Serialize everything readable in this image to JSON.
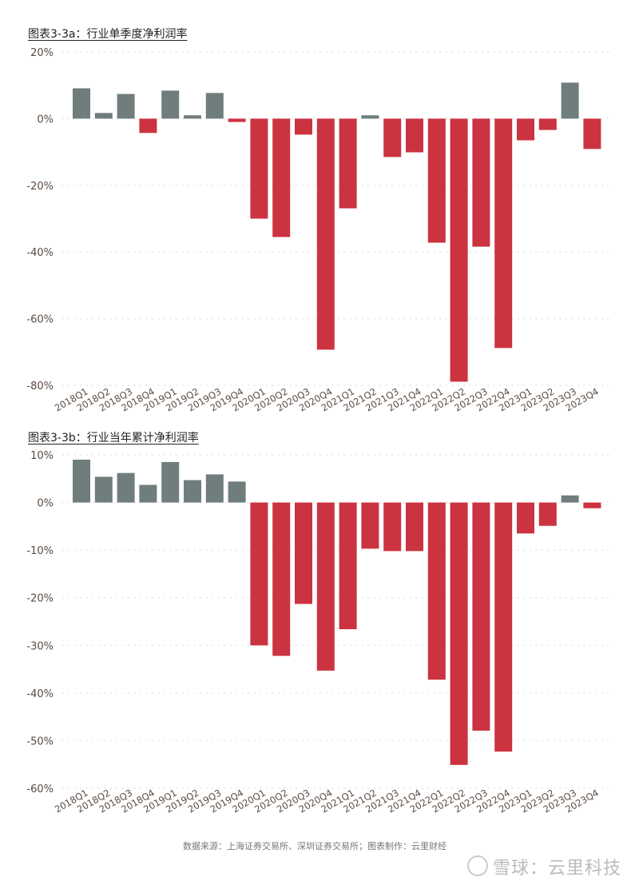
{
  "colors": {
    "positive": "#707d7d",
    "negative": "#cc3340",
    "tick": "#5a4a42",
    "grid": "#d8d8d8"
  },
  "chart_data": [
    {
      "type": "bar",
      "title": "图表3-3a：行业单季度净利润率",
      "categories": [
        "2018Q1",
        "2018Q2",
        "2018Q3",
        "2018Q4",
        "2019Q1",
        "2019Q2",
        "2019Q3",
        "2019Q4",
        "2020Q1",
        "2020Q2",
        "2020Q3",
        "2020Q4",
        "2021Q1",
        "2021Q2",
        "2021Q3",
        "2021Q4",
        "2022Q1",
        "2022Q2",
        "2022Q3",
        "2022Q4",
        "2023Q1",
        "2023Q2",
        "2023Q3",
        "2023Q4"
      ],
      "values": [
        9.1,
        1.7,
        7.4,
        -4.3,
        8.4,
        1.0,
        7.7,
        -1.0,
        -30.0,
        -35.5,
        -4.8,
        -69.3,
        -26.9,
        1.0,
        -11.5,
        -10.1,
        -37.2,
        -78.9,
        -38.4,
        -68.8,
        -6.5,
        -3.4,
        10.8,
        -9.1
      ],
      "unit": "%",
      "ylim": [
        -80,
        20
      ],
      "yticks": [
        "20%",
        "0%",
        "-20%",
        "-40%",
        "-60%",
        "-80%"
      ],
      "ytick_values": [
        20,
        0,
        -20,
        -40,
        -60,
        -80
      ],
      "grid": true
    },
    {
      "type": "bar",
      "title": "图表3-3b：行业当年累计净利润率",
      "categories": [
        "2018Q1",
        "2018Q2",
        "2018Q3",
        "2018Q4",
        "2019Q1",
        "2019Q2",
        "2019Q3",
        "2019Q4",
        "2020Q1",
        "2020Q2",
        "2020Q3",
        "2020Q4",
        "2021Q1",
        "2021Q2",
        "2021Q3",
        "2021Q4",
        "2022Q1",
        "2022Q2",
        "2022Q3",
        "2022Q4",
        "2023Q1",
        "2023Q2",
        "2023Q3",
        "2023Q4"
      ],
      "values": [
        9.0,
        5.4,
        6.2,
        3.7,
        8.5,
        4.7,
        5.9,
        4.4,
        -30.0,
        -32.2,
        -21.3,
        -35.3,
        -26.6,
        -9.7,
        -10.2,
        -10.2,
        -37.2,
        -55.1,
        -47.9,
        -52.3,
        -6.5,
        -4.9,
        1.5,
        -1.2
      ],
      "unit": "%",
      "ylim": [
        -60,
        10
      ],
      "yticks": [
        "10%",
        "0%",
        "-10%",
        "-20%",
        "-30%",
        "-40%",
        "-50%",
        "-60%"
      ],
      "ytick_values": [
        10,
        0,
        -10,
        -20,
        -30,
        -40,
        -50,
        -60
      ],
      "grid": true
    }
  ],
  "footer": {
    "source": "数据来源：上海证券交易所、深圳证券交易所；图表制作：云里财经",
    "watermark": "雪球：云里科技"
  }
}
